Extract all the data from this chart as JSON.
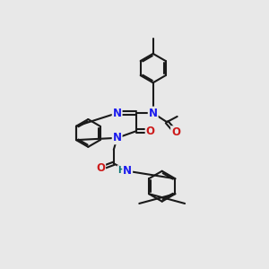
{
  "bg_color": "#e8e8e8",
  "bond_color": "#1a1a1a",
  "n_color": "#1a1aee",
  "o_color": "#cc1a1a",
  "h_color": "#007070",
  "lw": 1.5,
  "fs": 8.5,
  "dpi": 100,
  "figsize": [
    3.0,
    3.0
  ],
  "xlim": [
    0,
    300
  ],
  "ylim": [
    0,
    300
  ]
}
